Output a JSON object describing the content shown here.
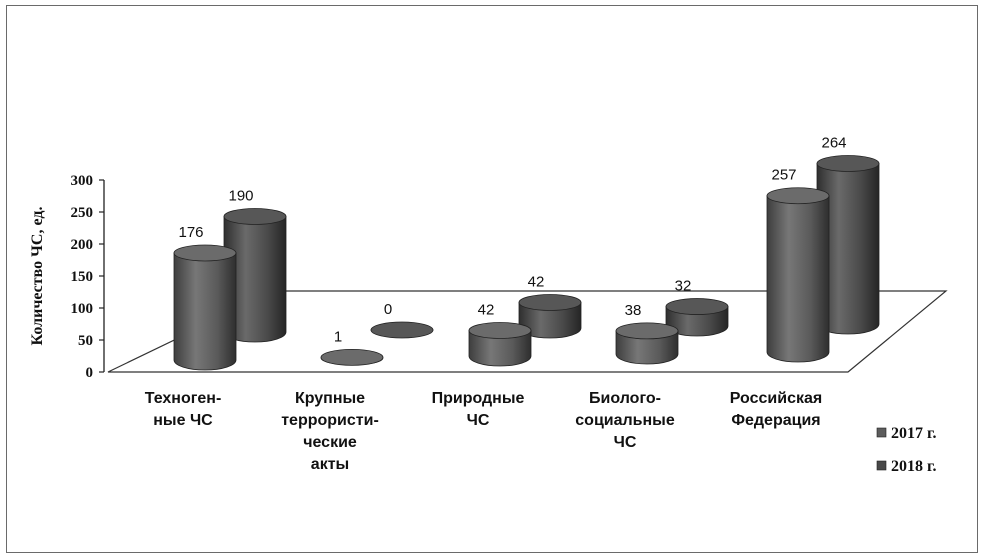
{
  "chart_data": {
    "type": "bar",
    "title": "",
    "xlabel": "",
    "ylabel": "Количество ЧС,  ед.",
    "ylim": [
      0,
      300
    ],
    "yticks": [
      0,
      50,
      100,
      150,
      200,
      250,
      300
    ],
    "categories": [
      [
        "Техноген-",
        "ные ЧС"
      ],
      [
        "Крупные",
        "террористи-",
        "ческие",
        "акты"
      ],
      [
        "Природные",
        "ЧС"
      ],
      [
        "Биолого-",
        "социальные",
        "ЧС"
      ],
      [
        "Российская",
        "Федерация"
      ]
    ],
    "series": [
      {
        "name": "2017 г.",
        "values": [
          176,
          1,
          42,
          38,
          257
        ],
        "color": "#5c5c5c"
      },
      {
        "name": "2018 г.",
        "values": [
          190,
          0,
          42,
          32,
          264
        ],
        "color": "#484848"
      }
    ],
    "legend": "right",
    "style": "3d-cylinder"
  }
}
